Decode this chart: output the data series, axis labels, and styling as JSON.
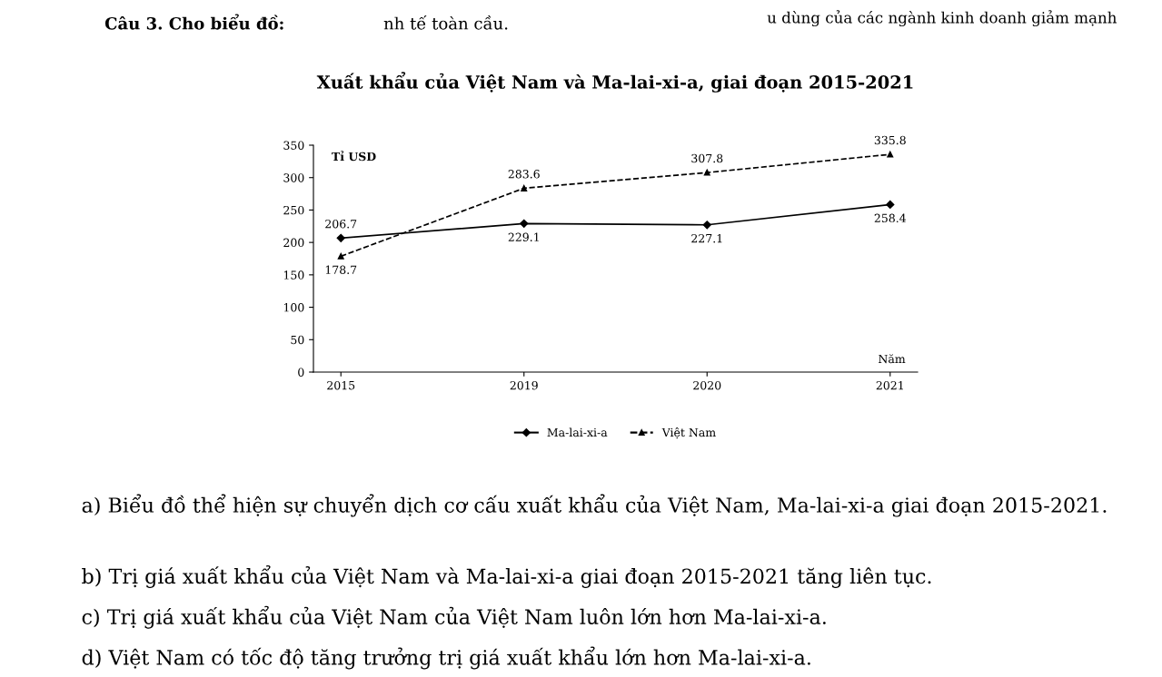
{
  "chart_data": {
    "type": "line",
    "title": "Xuất khẩu của Việt Nam và Ma-lai-xi-a, giai đoạn 2015-2021",
    "ylabel": "Tỉ USD",
    "xlabel": "Năm",
    "categories": [
      "2015",
      "2019",
      "2020",
      "2021"
    ],
    "series": [
      {
        "name": "Ma-lai-xi-a",
        "color": "#000000",
        "marker": "diamond",
        "line_style": "solid",
        "values": [
          206.7,
          229.1,
          227.1,
          258.4
        ]
      },
      {
        "name": "Việt Nam",
        "color": "#000000",
        "marker": "triangle",
        "line_style": "dashed",
        "values": [
          178.7,
          283.6,
          307.8,
          335.8
        ]
      }
    ],
    "ylim": [
      0,
      350
    ],
    "yticks": [
      0,
      50,
      100,
      150,
      200,
      250,
      300,
      350
    ],
    "data_labels": true,
    "grid": false,
    "legend": "bottom",
    "annotations": [
      "Câu 3. Cho biểu đồ:",
      "nh tế toàn cầu.",
      "u dùng của các ngành kinh doanh giảm mạnh",
      "a) Biểu đồ thể hiện sự chuyển dịch cơ cấu xuất khẩu của Việt Nam, Ma-lai-xi-a giai đoạn 2015-2021.",
      "b) Trị giá xuất khẩu của Việt Nam và Ma-lai-xi-a giai đoạn 2015-2021 tăng liên tục.",
      "c) Trị giá xuất khẩu của Việt Nam của Việt Nam luôn lớn hơn Ma-lai-xi-a.",
      "d) Việt Nam có tốc độ tăng trưởng trị giá xuất khẩu lớn hơn Ma-lai-xi-a."
    ]
  }
}
